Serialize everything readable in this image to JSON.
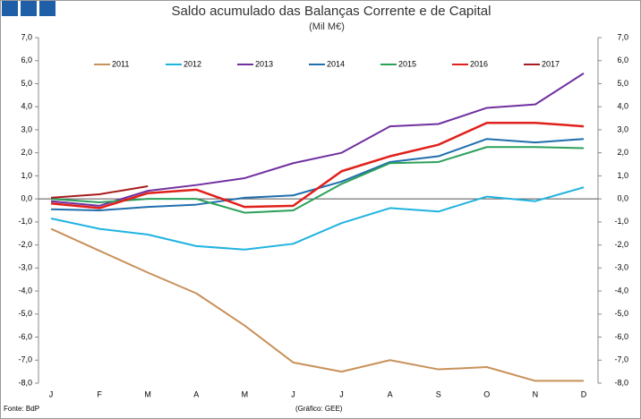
{
  "footer_left": "Fonte: BdP",
  "footer_right": "(Gráfico: GEE)",
  "chart_data": {
    "type": "line",
    "title": "Saldo acumulado das Balanças Corrente e de Capital",
    "subtitle": "(Mil M€)",
    "categories": [
      "J",
      "F",
      "M",
      "A",
      "M",
      "J",
      "J",
      "A",
      "S",
      "O",
      "N",
      "D"
    ],
    "series": [
      {
        "name": "2011",
        "color": "#c8915a",
        "values": [
          -1.3,
          -2.25,
          -3.2,
          -4.1,
          -5.5,
          -7.1,
          -7.5,
          -7.0,
          -7.4,
          -7.3,
          -7.9,
          -7.9
        ]
      },
      {
        "name": "2012",
        "color": "#1fb3e0",
        "values": [
          -0.85,
          -1.3,
          -1.55,
          -2.05,
          -2.2,
          -1.95,
          -1.05,
          -0.4,
          -0.55,
          0.1,
          -0.1,
          0.5
        ]
      },
      {
        "name": "2013",
        "color": "#7030a0",
        "values": [
          -0.1,
          -0.3,
          0.35,
          0.6,
          0.9,
          1.55,
          2.0,
          3.15,
          3.25,
          3.95,
          4.1,
          5.45
        ]
      },
      {
        "name": "2014",
        "color": "#1f6fad",
        "values": [
          -0.45,
          -0.5,
          -0.35,
          -0.25,
          0.05,
          0.15,
          0.75,
          1.6,
          1.85,
          2.6,
          2.45,
          2.6
        ]
      },
      {
        "name": "2015",
        "color": "#2ca05a",
        "values": [
          0.0,
          -0.15,
          0.0,
          0.0,
          -0.6,
          -0.5,
          0.65,
          1.55,
          1.6,
          2.25,
          2.25,
          2.2
        ]
      },
      {
        "name": "2016",
        "color": "#e0201b",
        "values": [
          -0.2,
          -0.4,
          0.25,
          0.4,
          -0.35,
          -0.3,
          1.2,
          1.85,
          2.35,
          3.3,
          3.3,
          3.15
        ]
      },
      {
        "name": "2017",
        "color": "#a81c1c",
        "values": [
          0.05,
          0.2,
          0.55,
          null,
          null,
          null,
          null,
          null,
          null,
          null,
          null,
          null
        ]
      }
    ],
    "ylim": [
      -8,
      7
    ],
    "yticks": [
      {
        "value": 7,
        "label": "7,0"
      },
      {
        "value": 6,
        "label": "6,0"
      },
      {
        "value": 5,
        "label": "5,0"
      },
      {
        "value": 4,
        "label": "4,0"
      },
      {
        "value": 3,
        "label": "3,0"
      },
      {
        "value": 2,
        "label": "2,0"
      },
      {
        "value": 1,
        "label": "1,0"
      },
      {
        "value": 0,
        "label": "0,0"
      },
      {
        "value": -1,
        "label": "-1,0"
      },
      {
        "value": -2,
        "label": "-2,0"
      },
      {
        "value": -3,
        "label": "-3,0"
      },
      {
        "value": -4,
        "label": "-4,0"
      },
      {
        "value": -5,
        "label": "-5,0"
      },
      {
        "value": -6,
        "label": "-6,0"
      },
      {
        "value": -7,
        "label": "-7,0"
      },
      {
        "value": -8,
        "label": "-8,0"
      }
    ],
    "y2lim": [
      -8,
      7
    ],
    "y2ticks": [
      {
        "value": 7,
        "label": "7,0"
      },
      {
        "value": 6,
        "label": "6,0"
      },
      {
        "value": 5,
        "label": "5,0"
      },
      {
        "value": 4,
        "label": "4,0"
      },
      {
        "value": 3,
        "label": "3,0"
      },
      {
        "value": 2,
        "label": "2,0"
      },
      {
        "value": 1,
        "label": "1,0"
      },
      {
        "value": 0,
        "label": "0,0"
      },
      {
        "value": -1,
        "label": "-1,0"
      },
      {
        "value": -2,
        "label": "-2,0"
      },
      {
        "value": -3,
        "label": "-3,0"
      },
      {
        "value": -4,
        "label": "-4,0"
      },
      {
        "value": -5,
        "label": "-5,0"
      },
      {
        "value": -6,
        "label": "-6,0"
      },
      {
        "value": -7,
        "label": "-7,0"
      },
      {
        "value": -8,
        "label": "-8,0"
      }
    ],
    "legend": "top"
  }
}
